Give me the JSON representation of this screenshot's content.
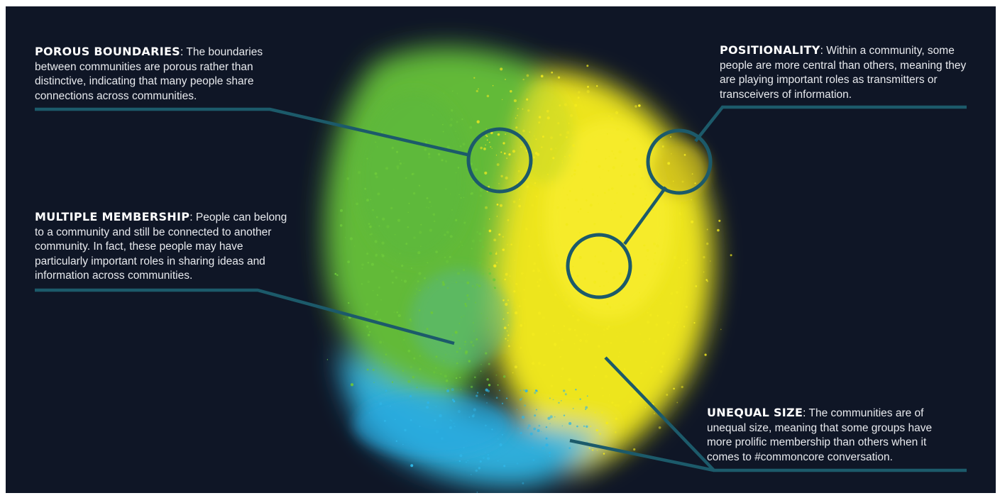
{
  "annotations": {
    "porous": {
      "heading": "POROUS BOUNDARIES",
      "text": "The boundaries between communities are porous rather than distinctive, indicating that many people share connections across communities."
    },
    "positionality": {
      "heading": "POSITIONALITY",
      "text": "Within a community, some people are more central than others, meaning they are playing important roles as transmitters or transceivers of information."
    },
    "multiple": {
      "heading": "MULTIPLE MEMBERSHIP",
      "text": "People can belong to a community and still be connected to another community. In fact, these people may have particularly important roles in sharing ideas and information across communities."
    },
    "unequal": {
      "heading": "UNEQUAL SIZE",
      "text": "The communities are of unequal size, meaning that some groups have more prolific membership than others when it comes to #commoncore conversation."
    }
  },
  "colors": {
    "background": "#0f1626",
    "community_green": "#6cc83a",
    "community_yellow": "#f3ea1e",
    "community_blue": "#2fb5e6",
    "callout_line": "#1c5a6a"
  }
}
